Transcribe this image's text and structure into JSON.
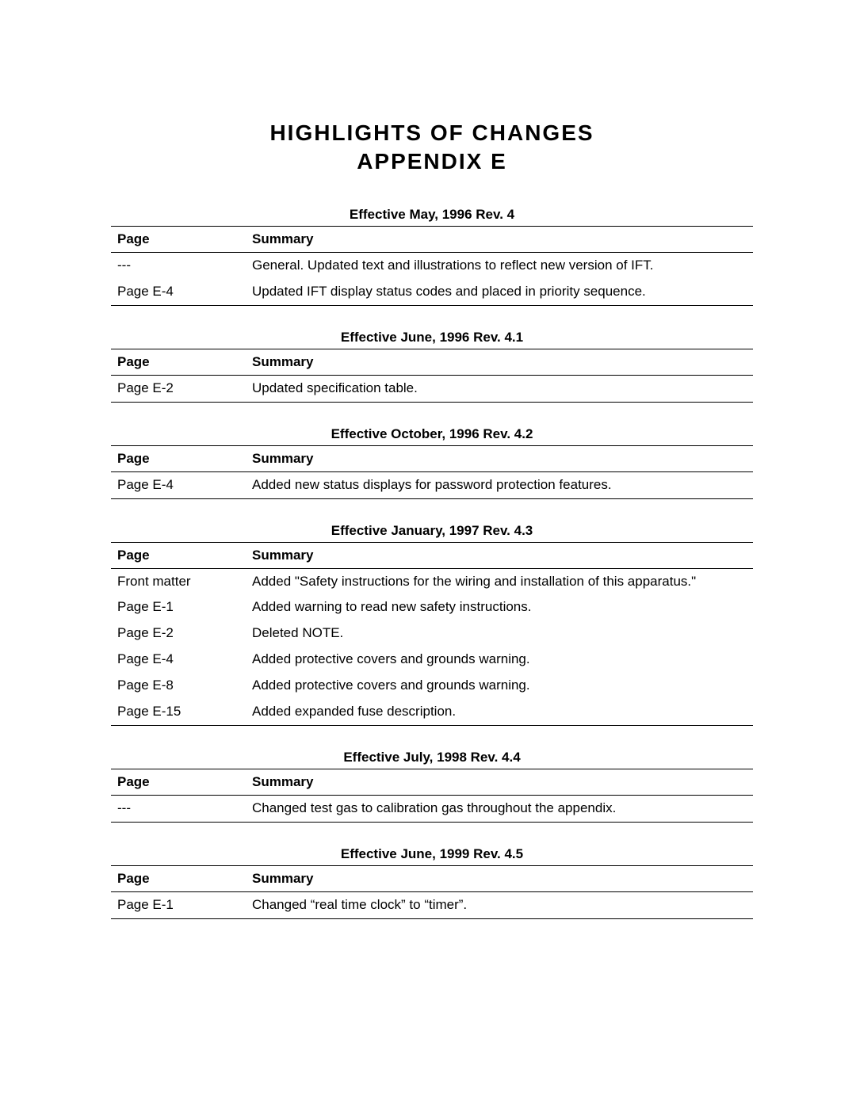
{
  "title_line1": "HIGHLIGHTS  OF  CHANGES",
  "title_line2": "APPENDIX  E",
  "col_page": "Page",
  "col_summary": "Summary",
  "sections": [
    {
      "title": "Effective May, 1996 Rev. 4",
      "rows": [
        {
          "page": "---",
          "summary": "General.  Updated text and illustrations to reflect new version of IFT."
        },
        {
          "page": "Page E-4",
          "summary": "Updated IFT display status codes and placed in priority sequence."
        }
      ]
    },
    {
      "title": "Effective June, 1996 Rev. 4.1",
      "rows": [
        {
          "page": "Page E-2",
          "summary": "Updated specification table."
        }
      ]
    },
    {
      "title": "Effective October, 1996 Rev. 4.2",
      "rows": [
        {
          "page": "Page E-4",
          "summary": "Added new status displays for password protection features."
        }
      ]
    },
    {
      "title": "Effective January, 1997 Rev. 4.3",
      "rows": [
        {
          "page": "Front matter",
          "summary": "Added \"Safety instructions for the wiring and installation of this apparatus.\""
        },
        {
          "page": "Page E-1",
          "summary": "Added warning to read new safety instructions."
        },
        {
          "page": "Page E-2",
          "summary": "Deleted NOTE."
        },
        {
          "page": "Page E-4",
          "summary": "Added protective covers and grounds warning."
        },
        {
          "page": "Page E-8",
          "summary": "Added protective covers and grounds warning."
        },
        {
          "page": "Page E-15",
          "summary": "Added expanded fuse description."
        }
      ]
    },
    {
      "title": "Effective July, 1998 Rev. 4.4",
      "rows": [
        {
          "page": "---",
          "summary": "Changed test gas to calibration gas throughout the appendix."
        }
      ]
    },
    {
      "title": "Effective June, 1999 Rev. 4.5",
      "rows": [
        {
          "page": "Page E-1",
          "summary": "Changed “real time clock” to “timer”."
        }
      ]
    }
  ]
}
